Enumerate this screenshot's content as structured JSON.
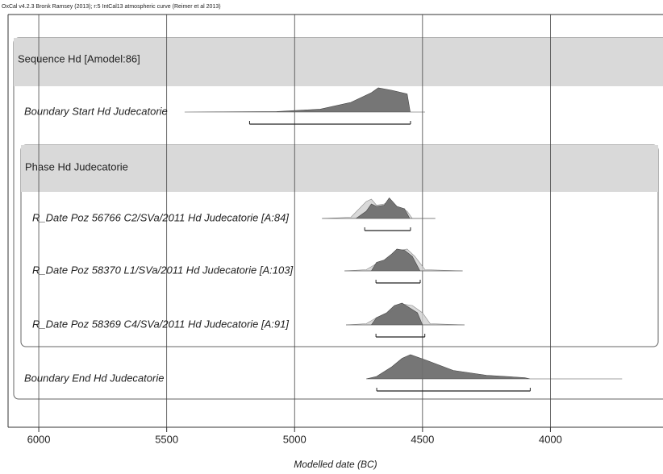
{
  "chart_data": {
    "type": "oxcal",
    "header": "OxCal v4.2.3 Bronk Ramsey (2013); r:5 IntCal13 atmospheric curve (Reimer et al 2013)",
    "xlabel": "Modelled date (BC)",
    "xlim": [
      6120,
      3560
    ],
    "xticks": [
      6000,
      5500,
      5000,
      4500,
      4000
    ],
    "grid": true,
    "sequence": "Sequence Hd [Amodel:86]",
    "phase": "Phase Hd Judecatorie",
    "items": [
      {
        "name": "Boundary Start Hd Judecatorie",
        "group": "sequence",
        "range": [
          5176,
          4547
        ],
        "posterior": {
          "x": [
            5430,
            5070,
            4900,
            4780,
            4700,
            4673,
            4620,
            4560,
            4548,
            4490
          ],
          "density": [
            0,
            0.02,
            0.12,
            0.4,
            0.8,
            1,
            0.9,
            0.75,
            0,
            0
          ]
        }
      },
      {
        "name": "R_Date Poz 56766 C2/SVa/2011 Hd Judecatorie [A:84]",
        "group": "phase",
        "range": [
          4726,
          4547
        ],
        "likelihood": {
          "x": [
            4893,
            4780,
            4720,
            4700,
            4680,
            4650,
            4630,
            4600,
            4560,
            4540,
            4450
          ],
          "density": [
            0,
            0.05,
            0.7,
            0.8,
            0.55,
            0.6,
            0.7,
            0.45,
            0.3,
            0,
            0
          ]
        },
        "posterior": {
          "x": [
            4893,
            4760,
            4720,
            4700,
            4680,
            4650,
            4630,
            4600,
            4570,
            4550,
            4450
          ],
          "density": [
            0,
            0,
            0.3,
            0.6,
            0.5,
            0.55,
            0.85,
            0.5,
            0.4,
            0,
            0
          ]
        }
      },
      {
        "name": "R_Date Poz 58370 L1/SVa/2011 Hd Judecatorie [A:103]",
        "group": "phase",
        "range": [
          4682,
          4509
        ],
        "likelihood": {
          "x": [
            4805,
            4720,
            4680,
            4650,
            4620,
            4590,
            4560,
            4530,
            4490,
            4343
          ],
          "density": [
            0,
            0.05,
            0.3,
            0.4,
            0.6,
            0.85,
            0.9,
            0.6,
            0.05,
            0
          ]
        },
        "posterior": {
          "x": [
            4805,
            4700,
            4680,
            4650,
            4620,
            4600,
            4570,
            4540,
            4510,
            4343
          ],
          "density": [
            0,
            0,
            0.35,
            0.45,
            0.7,
            0.9,
            0.85,
            0.6,
            0,
            0
          ]
        }
      },
      {
        "name": "R_Date Poz 58369 C4/SVa/2011 Hd Judecatorie [A:91]",
        "group": "phase",
        "range": [
          4682,
          4491
        ],
        "likelihood": {
          "x": [
            4799,
            4720,
            4680,
            4640,
            4600,
            4570,
            4540,
            4500,
            4470,
            4336
          ],
          "density": [
            0,
            0.05,
            0.3,
            0.45,
            0.7,
            0.85,
            0.8,
            0.5,
            0.05,
            0
          ]
        },
        "posterior": {
          "x": [
            4799,
            4700,
            4680,
            4640,
            4610,
            4580,
            4550,
            4520,
            4500,
            4336
          ],
          "density": [
            0,
            0,
            0.3,
            0.5,
            0.8,
            0.9,
            0.7,
            0.5,
            0,
            0
          ]
        }
      },
      {
        "name": "Boundary End Hd Judecatorie",
        "group": "sequence",
        "range": [
          4679,
          4079
        ],
        "posterior": {
          "x": [
            4720,
            4680,
            4620,
            4580,
            4547,
            4480,
            4380,
            4250,
            4100,
            4080,
            3720
          ],
          "density": [
            0,
            0.1,
            0.5,
            0.85,
            1,
            0.75,
            0.35,
            0.15,
            0.05,
            0,
            0
          ]
        }
      }
    ]
  }
}
